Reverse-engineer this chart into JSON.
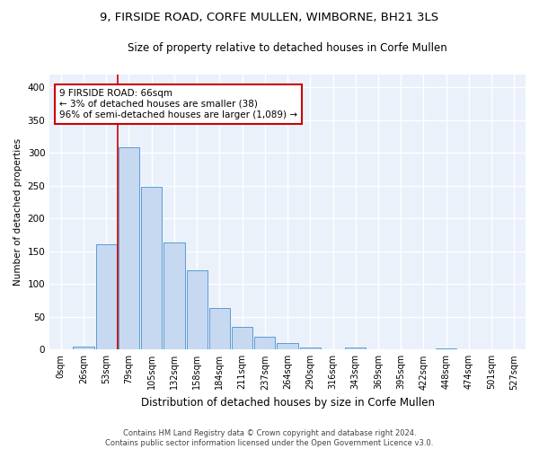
{
  "title_line1": "9, FIRSIDE ROAD, CORFE MULLEN, WIMBORNE, BH21 3LS",
  "title_line2": "Size of property relative to detached houses in Corfe Mullen",
  "xlabel": "Distribution of detached houses by size in Corfe Mullen",
  "ylabel": "Number of detached properties",
  "footnote": "Contains HM Land Registry data © Crown copyright and database right 2024.\nContains public sector information licensed under the Open Government Licence v3.0.",
  "bar_labels": [
    "0sqm",
    "26sqm",
    "53sqm",
    "79sqm",
    "105sqm",
    "132sqm",
    "158sqm",
    "184sqm",
    "211sqm",
    "237sqm",
    "264sqm",
    "290sqm",
    "316sqm",
    "343sqm",
    "369sqm",
    "395sqm",
    "422sqm",
    "448sqm",
    "474sqm",
    "501sqm",
    "527sqm"
  ],
  "bar_values": [
    0,
    5,
    160,
    308,
    248,
    163,
    121,
    63,
    35,
    19,
    10,
    3,
    0,
    3,
    0,
    1,
    0,
    2,
    0,
    0,
    0
  ],
  "bar_color": "#c6d9f0",
  "bar_edge_color": "#5b9bd5",
  "vline_x": 2.5,
  "vline_color": "#cc0000",
  "annotation_text": "9 FIRSIDE ROAD: 66sqm\n← 3% of detached houses are smaller (38)\n96% of semi-detached houses are larger (1,089) →",
  "annotation_box_color": "#ffffff",
  "annotation_box_edge": "#cc0000",
  "ylim": [
    0,
    420
  ],
  "yticks": [
    0,
    50,
    100,
    150,
    200,
    250,
    300,
    350,
    400
  ],
  "bg_color": "#eaf1fb",
  "grid_color": "#ffffff",
  "title_fontsize": 9.5,
  "subtitle_fontsize": 8.5
}
